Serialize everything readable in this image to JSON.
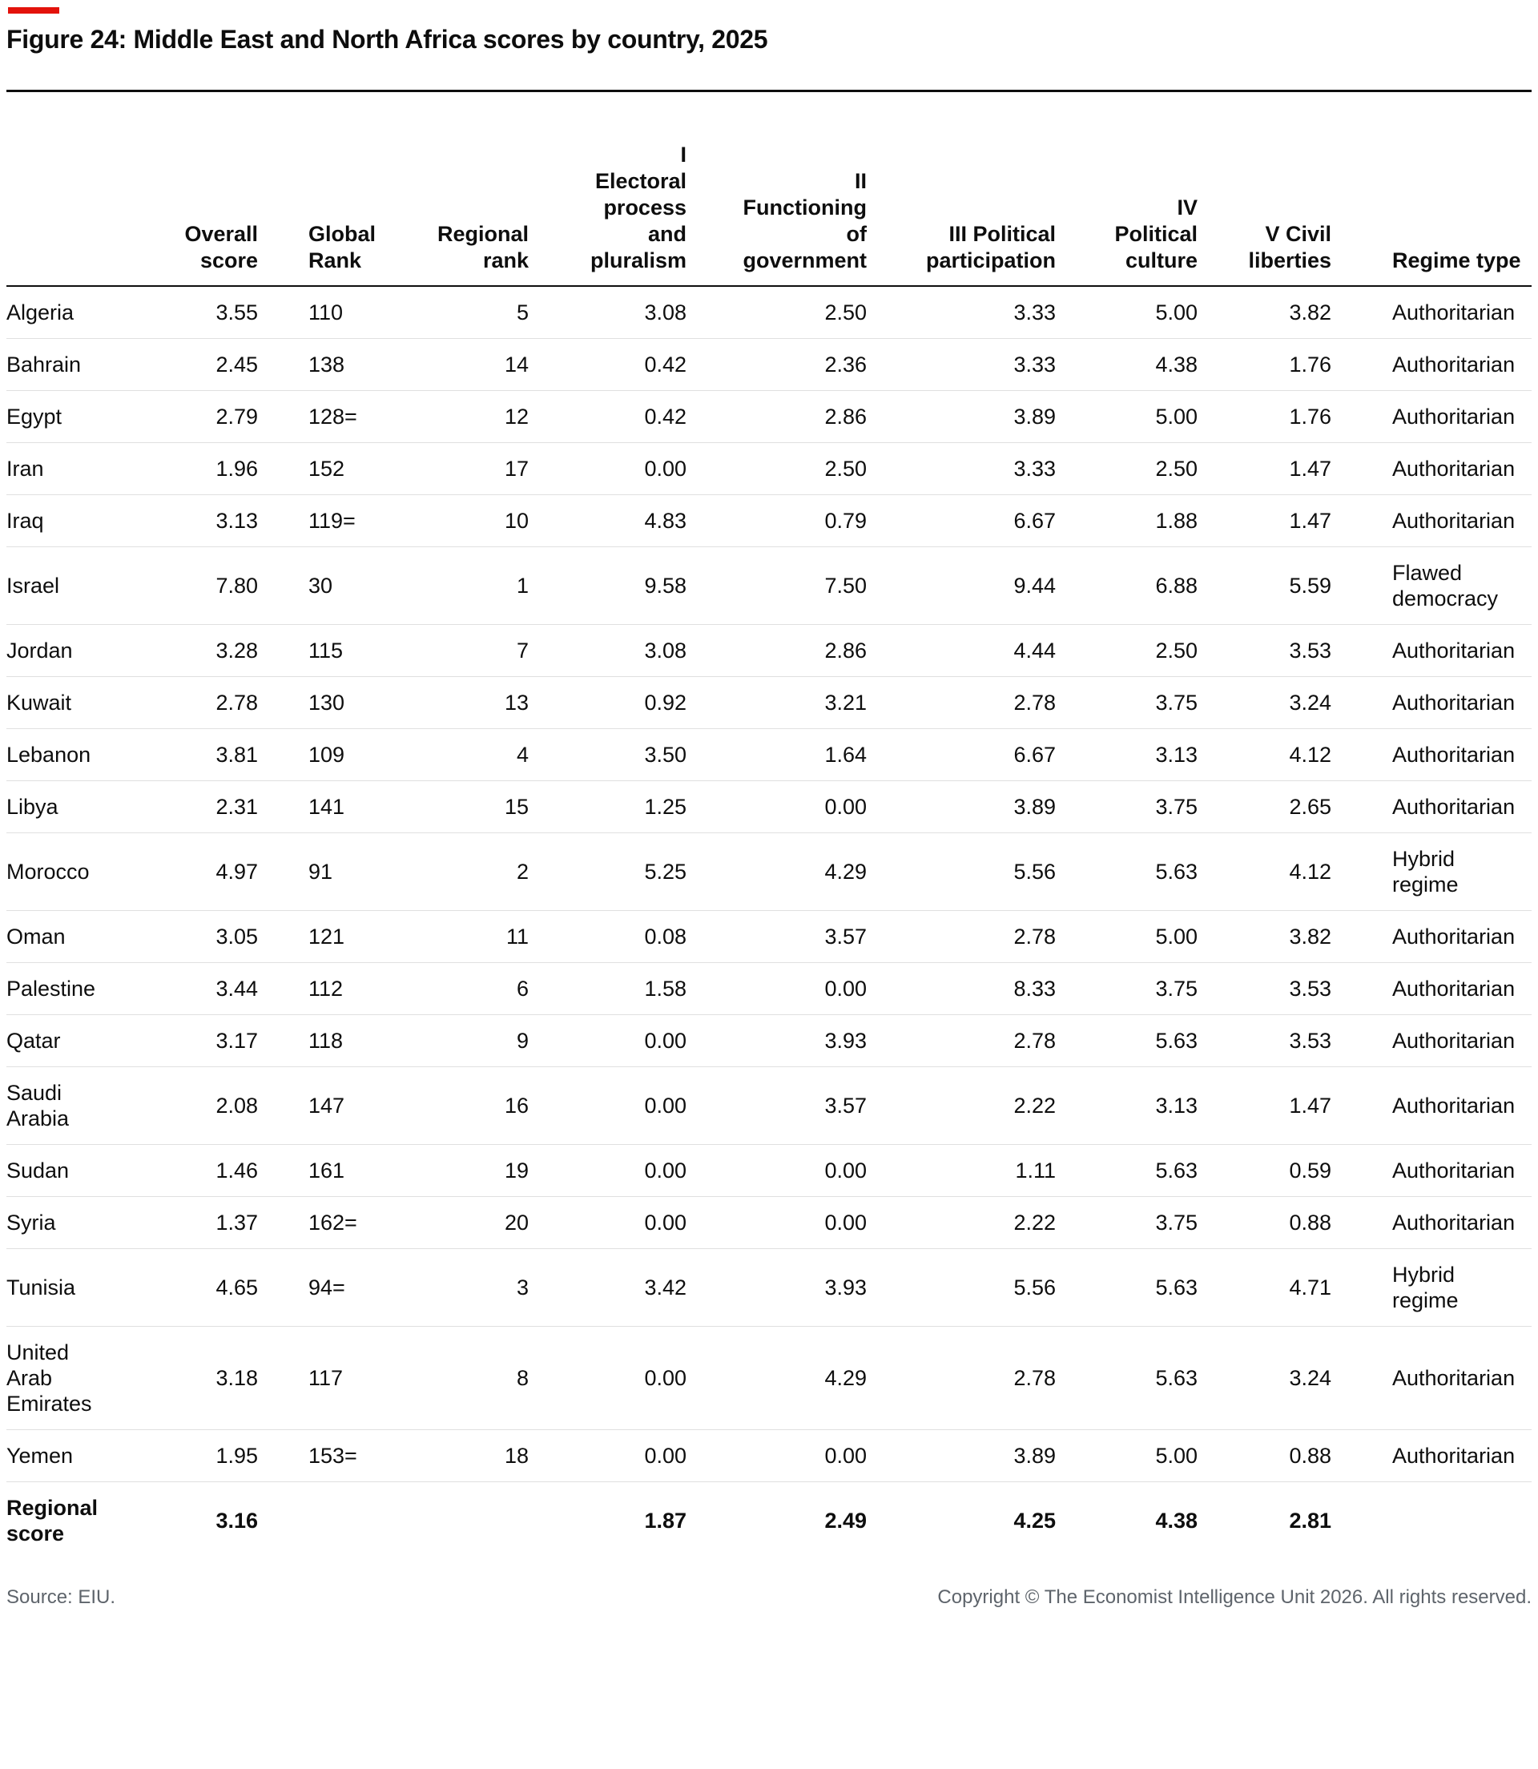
{
  "page": {
    "title": "Figure 24: Middle East and North Africa scores by country, 2025",
    "accent_red": "#E3120B",
    "source": "Source: EIU.",
    "copyright": "Copyright © The Economist Intelligence Unit 2026. All rights reserved."
  },
  "chart_data": {
    "type": "table",
    "title": "Figure 24: Middle East and North Africa scores by country, 2025",
    "columns": [
      {
        "label": ""
      },
      {
        "label": "Overall\nscore"
      },
      {
        "label": "Global\nRank"
      },
      {
        "label": "Regional\nrank"
      },
      {
        "label": "I\nElectoral\nprocess\nand\npluralism"
      },
      {
        "label": "II\nFunctioning\nof\ngovernment"
      },
      {
        "label": "III Political\nparticipation"
      },
      {
        "label": "IV\nPolitical\nculture"
      },
      {
        "label": "V Civil\nliberties"
      },
      {
        "label": "Regime type"
      }
    ],
    "rows": [
      {
        "country": "Algeria",
        "overall": "3.55",
        "global_rank": "110",
        "regional_rank": "5",
        "electoral": "3.08",
        "functioning": "2.50",
        "participation": "3.33",
        "culture": "5.00",
        "liberties": "3.82",
        "regime": "Authoritarian"
      },
      {
        "country": "Bahrain",
        "overall": "2.45",
        "global_rank": "138",
        "regional_rank": "14",
        "electoral": "0.42",
        "functioning": "2.36",
        "participation": "3.33",
        "culture": "4.38",
        "liberties": "1.76",
        "regime": "Authoritarian"
      },
      {
        "country": "Egypt",
        "overall": "2.79",
        "global_rank": "128=",
        "regional_rank": "12",
        "electoral": "0.42",
        "functioning": "2.86",
        "participation": "3.89",
        "culture": "5.00",
        "liberties": "1.76",
        "regime": "Authoritarian"
      },
      {
        "country": "Iran",
        "overall": "1.96",
        "global_rank": "152",
        "regional_rank": "17",
        "electoral": "0.00",
        "functioning": "2.50",
        "participation": "3.33",
        "culture": "2.50",
        "liberties": "1.47",
        "regime": "Authoritarian"
      },
      {
        "country": "Iraq",
        "overall": "3.13",
        "global_rank": "119=",
        "regional_rank": "10",
        "electoral": "4.83",
        "functioning": "0.79",
        "participation": "6.67",
        "culture": "1.88",
        "liberties": "1.47",
        "regime": "Authoritarian"
      },
      {
        "country": "Israel",
        "overall": "7.80",
        "global_rank": "30",
        "regional_rank": "1",
        "electoral": "9.58",
        "functioning": "7.50",
        "participation": "9.44",
        "culture": "6.88",
        "liberties": "5.59",
        "regime": "Flawed\ndemocracy"
      },
      {
        "country": "Jordan",
        "overall": "3.28",
        "global_rank": "115",
        "regional_rank": "7",
        "electoral": "3.08",
        "functioning": "2.86",
        "participation": "4.44",
        "culture": "2.50",
        "liberties": "3.53",
        "regime": "Authoritarian"
      },
      {
        "country": "Kuwait",
        "overall": "2.78",
        "global_rank": "130",
        "regional_rank": "13",
        "electoral": "0.92",
        "functioning": "3.21",
        "participation": "2.78",
        "culture": "3.75",
        "liberties": "3.24",
        "regime": "Authoritarian"
      },
      {
        "country": "Lebanon",
        "overall": "3.81",
        "global_rank": "109",
        "regional_rank": "4",
        "electoral": "3.50",
        "functioning": "1.64",
        "participation": "6.67",
        "culture": "3.13",
        "liberties": "4.12",
        "regime": "Authoritarian"
      },
      {
        "country": "Libya",
        "overall": "2.31",
        "global_rank": "141",
        "regional_rank": "15",
        "electoral": "1.25",
        "functioning": "0.00",
        "participation": "3.89",
        "culture": "3.75",
        "liberties": "2.65",
        "regime": "Authoritarian"
      },
      {
        "country": "Morocco",
        "overall": "4.97",
        "global_rank": "91",
        "regional_rank": "2",
        "electoral": "5.25",
        "functioning": "4.29",
        "participation": "5.56",
        "culture": "5.63",
        "liberties": "4.12",
        "regime": "Hybrid\nregime"
      },
      {
        "country": "Oman",
        "overall": "3.05",
        "global_rank": "121",
        "regional_rank": "11",
        "electoral": "0.08",
        "functioning": "3.57",
        "participation": "2.78",
        "culture": "5.00",
        "liberties": "3.82",
        "regime": "Authoritarian"
      },
      {
        "country": "Palestine",
        "overall": "3.44",
        "global_rank": "112",
        "regional_rank": "6",
        "electoral": "1.58",
        "functioning": "0.00",
        "participation": "8.33",
        "culture": "3.75",
        "liberties": "3.53",
        "regime": "Authoritarian"
      },
      {
        "country": "Qatar",
        "overall": "3.17",
        "global_rank": "118",
        "regional_rank": "9",
        "electoral": "0.00",
        "functioning": "3.93",
        "participation": "2.78",
        "culture": "5.63",
        "liberties": "3.53",
        "regime": "Authoritarian"
      },
      {
        "country": "Saudi Arabia",
        "overall": "2.08",
        "global_rank": "147",
        "regional_rank": "16",
        "electoral": "0.00",
        "functioning": "3.57",
        "participation": "2.22",
        "culture": "3.13",
        "liberties": "1.47",
        "regime": "Authoritarian"
      },
      {
        "country": "Sudan",
        "overall": "1.46",
        "global_rank": "161",
        "regional_rank": "19",
        "electoral": "0.00",
        "functioning": "0.00",
        "participation": "1.11",
        "culture": "5.63",
        "liberties": "0.59",
        "regime": "Authoritarian"
      },
      {
        "country": "Syria",
        "overall": "1.37",
        "global_rank": "162=",
        "regional_rank": "20",
        "electoral": "0.00",
        "functioning": "0.00",
        "participation": "2.22",
        "culture": "3.75",
        "liberties": "0.88",
        "regime": "Authoritarian"
      },
      {
        "country": "Tunisia",
        "overall": "4.65",
        "global_rank": "94=",
        "regional_rank": "3",
        "electoral": "3.42",
        "functioning": "3.93",
        "participation": "5.56",
        "culture": "5.63",
        "liberties": "4.71",
        "regime": "Hybrid\nregime"
      },
      {
        "country": "United Arab Emirates",
        "overall": "3.18",
        "global_rank": "117",
        "regional_rank": "8",
        "electoral": "0.00",
        "functioning": "4.29",
        "participation": "2.78",
        "culture": "5.63",
        "liberties": "3.24",
        "regime": "Authoritarian"
      },
      {
        "country": "Yemen",
        "overall": "1.95",
        "global_rank": "153=",
        "regional_rank": "18",
        "electoral": "0.00",
        "functioning": "0.00",
        "participation": "3.89",
        "culture": "5.00",
        "liberties": "0.88",
        "regime": "Authoritarian"
      }
    ],
    "footer_row": {
      "country": "Regional score",
      "overall": "3.16",
      "global_rank": "",
      "regional_rank": "",
      "electoral": "1.87",
      "functioning": "2.49",
      "participation": "4.25",
      "culture": "4.38",
      "liberties": "2.81",
      "regime": ""
    }
  }
}
